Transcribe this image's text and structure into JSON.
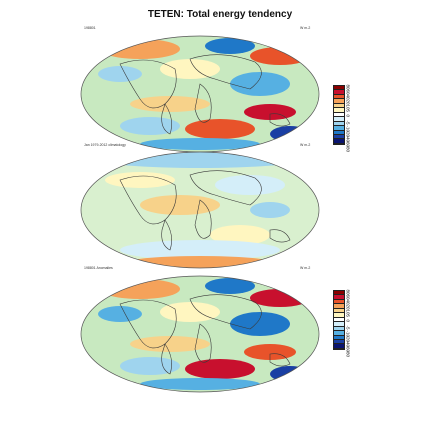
{
  "title": "TETEN: Total energy tendency",
  "panels": [
    {
      "label": "198801",
      "units": "W m-2",
      "colorbar_ticks": [
        "80",
        "60",
        "40",
        "20",
        "10",
        "5",
        "0",
        "-5",
        "-10",
        "-20",
        "-40",
        "-60",
        "-80"
      ],
      "colorbar_colors": [
        "#8b0000",
        "#c8102e",
        "#e8532a",
        "#f5a25a",
        "#f7d28a",
        "#fff6c0",
        "#ffffff",
        "#d4eef9",
        "#9fd4ee",
        "#56b0e2",
        "#1f78c8",
        "#1a3fa3",
        "#0a1470"
      ]
    },
    {
      "label": "Jan 1979-2012 climatology",
      "units": "W m-2"
    },
    {
      "label": "198801 Anomalies",
      "units": "W m-2",
      "colorbar_ticks": [
        "80",
        "60",
        "40",
        "20",
        "10",
        "5",
        "0",
        "-5",
        "-10",
        "-20",
        "-40",
        "-60",
        "-80"
      ],
      "colorbar_colors": [
        "#8b0000",
        "#c8102e",
        "#e8532a",
        "#f5a25a",
        "#f7d28a",
        "#fff6c0",
        "#ffffff",
        "#d4eef9",
        "#9fd4ee",
        "#56b0e2",
        "#1f78c8",
        "#1a3fa3",
        "#0a1470"
      ]
    }
  ],
  "palette": {
    "ocean_base": "#c8e9c0",
    "coast": "#3a3a3a",
    "outline": "#555555"
  }
}
